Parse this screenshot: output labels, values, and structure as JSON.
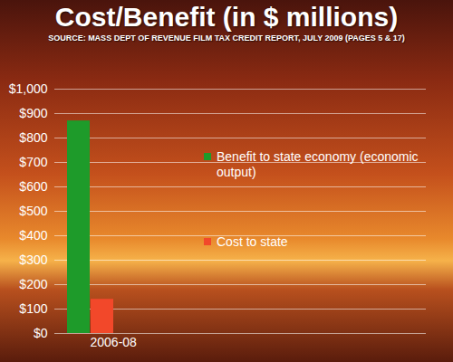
{
  "chart_data": {
    "type": "bar",
    "title": "Cost/Benefit (in $ millions)",
    "subtitle": "SOURCE: MASS DEPT OF REVENUE FILM TAX CREDIT REPORT, JULY 2009 (PAGES 5 & 17)",
    "categories": [
      "2006-08"
    ],
    "series": [
      {
        "name": "Benefit to state economy (economic output)",
        "color": "#1e9b2a",
        "values": [
          870
        ]
      },
      {
        "name": "Cost to state",
        "color": "#f2482a",
        "values": [
          140
        ]
      }
    ],
    "ylim": [
      0,
      1000
    ],
    "yticks": [
      {
        "value": 0,
        "label": "$0"
      },
      {
        "value": 100,
        "label": "$100"
      },
      {
        "value": 200,
        "label": "$200"
      },
      {
        "value": 300,
        "label": "$300"
      },
      {
        "value": 400,
        "label": "$400"
      },
      {
        "value": 500,
        "label": "$500"
      },
      {
        "value": 600,
        "label": "$600"
      },
      {
        "value": 700,
        "label": "$700"
      },
      {
        "value": 800,
        "label": "$800"
      },
      {
        "value": 900,
        "label": "$900"
      },
      {
        "value": 1000,
        "label": "$1,000"
      }
    ],
    "grid": true,
    "legend": "top-right"
  }
}
